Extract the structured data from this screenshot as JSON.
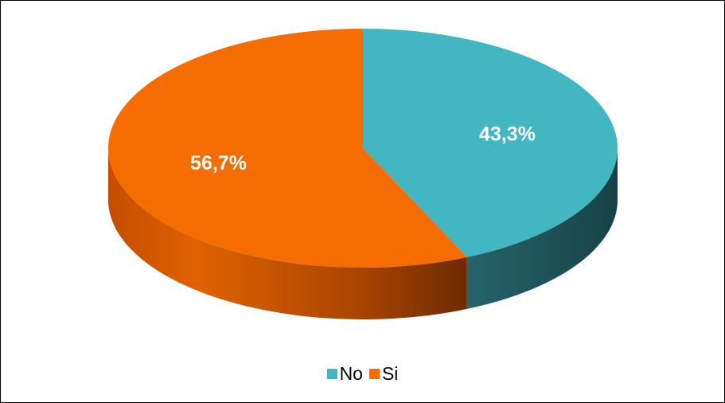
{
  "chart_data": {
    "type": "pie",
    "style": "3d",
    "categories": [
      "No",
      "Si"
    ],
    "values": [
      43.3,
      56.7
    ],
    "labels": [
      "43,3%",
      "56,7%"
    ],
    "colors": [
      "#42B7C2",
      "#F56C00"
    ],
    "legend_position": "bottom"
  }
}
